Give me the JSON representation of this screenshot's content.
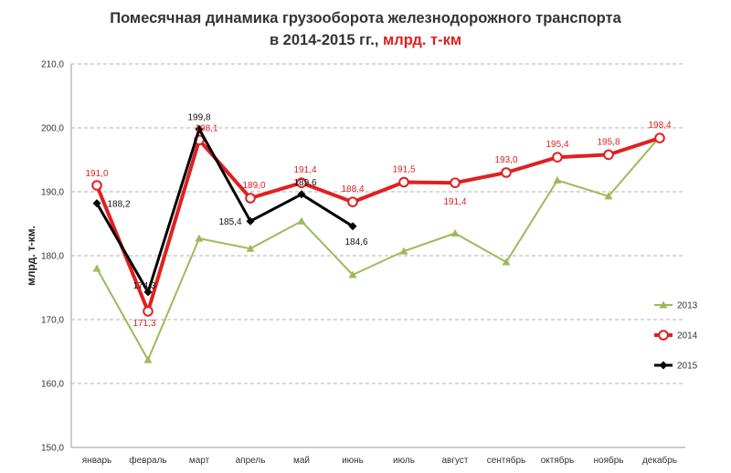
{
  "chart_data": {
    "type": "line",
    "title": "Помесячная динамика грузооборота железнодорожного транспорта",
    "title_line2": "в 2014-2015 гг.,",
    "title_unit": "млрд. т-км",
    "ylabel": "млрд. т-км.",
    "xlabel": "",
    "ylim": [
      150,
      210
    ],
    "yticks": [
      "150,0",
      "160,0",
      "170,0",
      "180,0",
      "190,0",
      "200,0",
      "210,0"
    ],
    "ytick_values": [
      150,
      160,
      170,
      180,
      190,
      200,
      210
    ],
    "grid": true,
    "legend_position": "right",
    "categories": [
      "январь",
      "февраль",
      "март",
      "апрель",
      "май",
      "июнь",
      "июль",
      "август",
      "сентябрь",
      "октябрь",
      "ноябрь",
      "декабрь"
    ],
    "series": [
      {
        "name": "2013",
        "color": "#9bbb59",
        "marker": "triangle",
        "values": [
          178.0,
          163.7,
          182.7,
          181.1,
          185.4,
          177.0,
          180.7,
          183.5,
          179.0,
          191.8,
          189.3,
          198.6
        ],
        "labels": []
      },
      {
        "name": "2014",
        "color": "#e02020",
        "marker": "circle-open",
        "values": [
          191.0,
          171.3,
          198.1,
          189.0,
          191.4,
          188.4,
          191.5,
          191.4,
          193.0,
          195.4,
          195.8,
          198.4
        ],
        "labels": [
          "191,0",
          "171,3",
          "198,1",
          "189,0",
          "191,4",
          "188,4",
          "191,5",
          "191,4",
          "193,0",
          "195,4",
          "195,8",
          "198,4"
        ]
      },
      {
        "name": "2015",
        "color": "#000000",
        "marker": "diamond",
        "values": [
          188.2,
          174.3,
          199.8,
          185.4,
          189.6,
          184.6,
          null,
          null,
          null,
          null,
          null,
          null
        ],
        "labels": [
          "188,2",
          "174,3",
          "199,8",
          "185,4",
          "189,6",
          "184,6"
        ]
      }
    ]
  }
}
